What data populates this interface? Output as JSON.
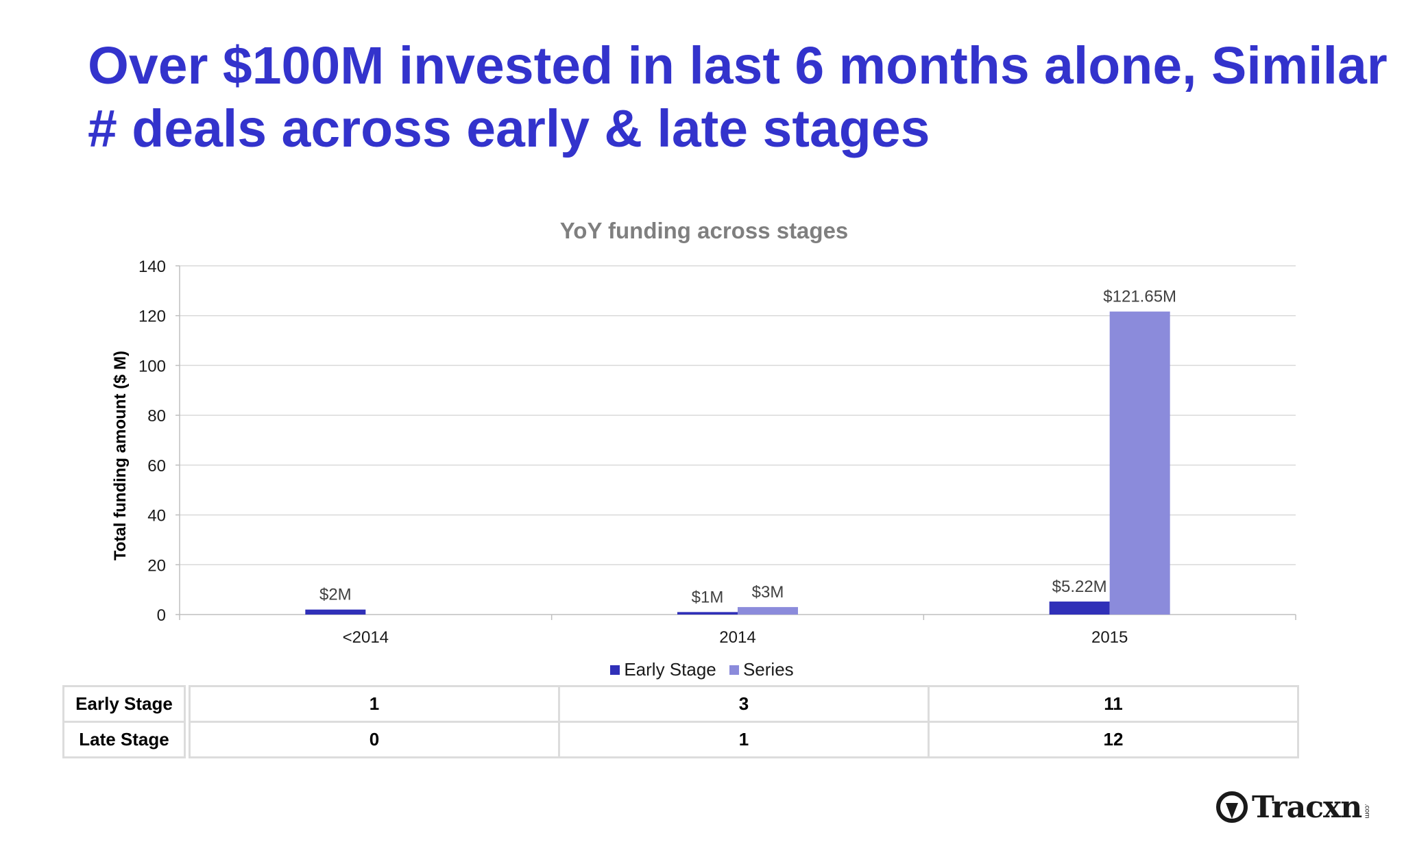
{
  "slide": {
    "title_line1": "Over $100M invested in last 6 months alone, Similar",
    "title_line2": "# deals across early & late stages"
  },
  "chart_data": {
    "type": "bar",
    "title": "YoY funding across stages",
    "xlabel": "",
    "ylabel": "Total funding amount ($ M)",
    "categories": [
      "<2014",
      "2014",
      "2015"
    ],
    "series": [
      {
        "name": "Early Stage",
        "color": "#3030b8",
        "values": [
          2,
          1,
          5.22
        ],
        "labels": [
          "$2M",
          "$1M",
          "$5.22M"
        ]
      },
      {
        "name": "Series",
        "color": "#8b8bdb",
        "values": [
          null,
          3,
          121.65
        ],
        "labels": [
          null,
          "$3M",
          "$121.65M"
        ]
      }
    ],
    "ylim": [
      0,
      140
    ],
    "yticks": [
      0,
      20,
      40,
      60,
      80,
      100,
      120,
      140
    ],
    "grid": true,
    "legend_position": "bottom"
  },
  "deal_table": {
    "rows": [
      {
        "label": "Early Stage",
        "values": [
          "1",
          "3",
          "11"
        ]
      },
      {
        "label": "Late Stage",
        "values": [
          "0",
          "1",
          "12"
        ]
      }
    ]
  },
  "logo": {
    "text": "Tracxn",
    "suffix": ".com"
  }
}
